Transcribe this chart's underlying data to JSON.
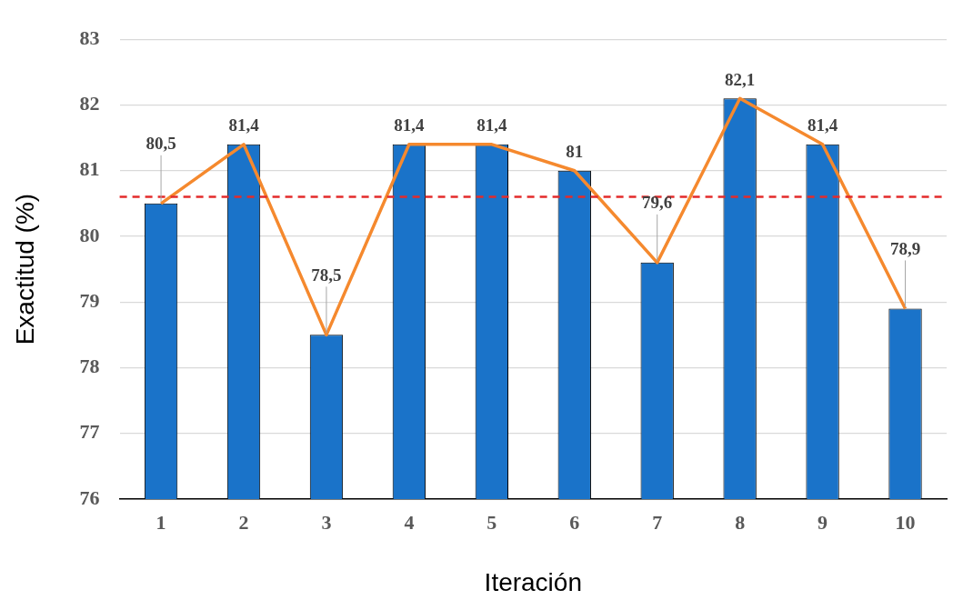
{
  "chart_data": {
    "type": "bar",
    "xlabel": "Iteración",
    "ylabel": "Exactitud (%)",
    "categories": [
      "1",
      "2",
      "3",
      "4",
      "5",
      "6",
      "7",
      "8",
      "9",
      "10"
    ],
    "series": [
      {
        "color": "#1a73c9",
        "values": [
          80.5,
          81.4,
          78.5,
          81.4,
          81.4,
          81,
          79.6,
          82.1,
          81.4,
          78.9
        ],
        "value_labels": [
          "80,5",
          "81,4",
          "78,5",
          "81,4",
          "81,4",
          "81",
          "79,6",
          "82,1",
          "81,4",
          "78,9"
        ]
      },
      {
        "type": "line",
        "color": "#f5892e",
        "values": [
          80.5,
          81.4,
          78.5,
          81.4,
          81.4,
          81,
          79.6,
          82.1,
          81.4,
          78.9
        ]
      }
    ],
    "ylim": [
      76,
      83
    ],
    "yticks": [
      76,
      77,
      78,
      79,
      80,
      81,
      82,
      83
    ],
    "grid": "y",
    "legend": false,
    "marker": "none",
    "ref_lines": [
      {
        "axis": "y",
        "value": 80.6,
        "color": "#e32b2b",
        "line_style": "dashed"
      }
    ]
  }
}
